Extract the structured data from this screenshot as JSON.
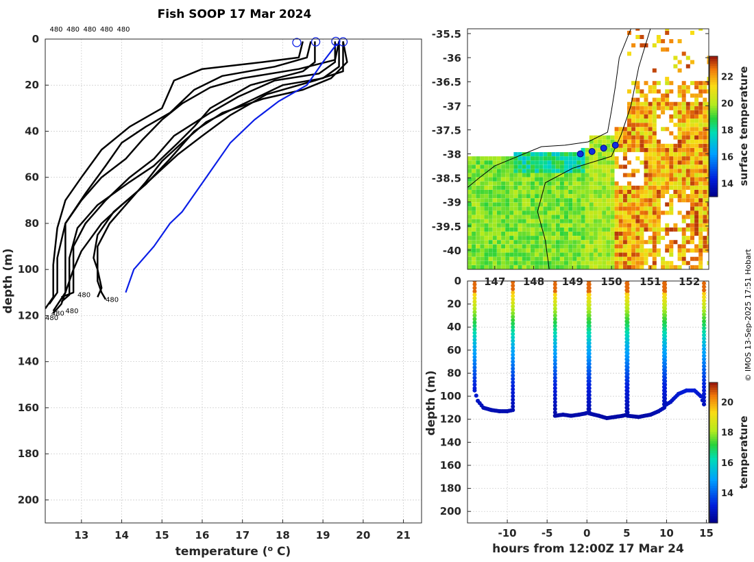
{
  "title": "Fish SOOP 17 Mar 2024",
  "credit": "© IMOS 13-Sep-2025 17:51 Hobart",
  "colors": {
    "profile": "#000000",
    "climatology": "#0a1ee6",
    "land": "#ffffff"
  },
  "chart_data": [
    {
      "type": "line",
      "name": "temperature-profiles",
      "xlabel": "temperature (° C)",
      "ylabel": "depth (m)",
      "xlim": [
        12.1,
        21.45
      ],
      "ylim": [
        210,
        0
      ],
      "xticks": [
        "13",
        "14",
        "15",
        "16",
        "17",
        "18",
        "19",
        "20",
        "21"
      ],
      "yticks": [
        "0",
        "20",
        "40",
        "60",
        "80",
        "100",
        "120",
        "140",
        "160",
        "180",
        "200"
      ],
      "top_labels": [
        "480",
        "480",
        "480",
        "480",
        "480"
      ],
      "bottom_labels": [
        {
          "text": "480",
          "x": 12.9,
          "y": 112
        },
        {
          "text": "480",
          "x": 13.6,
          "y": 114
        },
        {
          "text": "480",
          "x": 12.6,
          "y": 119
        },
        {
          "text": "480",
          "x": 12.25,
          "y": 120
        },
        {
          "text": "480",
          "x": 12.1,
          "y": 122
        }
      ],
      "surface_markers": [
        {
          "x": 18.35,
          "y": 1.5
        },
        {
          "x": 18.82,
          "y": 1.2
        },
        {
          "x": 19.32,
          "y": 1.0
        },
        {
          "x": 19.5,
          "y": 1.2
        }
      ],
      "series": [
        {
          "name": "profile-1",
          "points": [
            [
              18.5,
              1
            ],
            [
              18.4,
              8
            ],
            [
              17.5,
              10
            ],
            [
              16,
              13
            ],
            [
              15.3,
              18
            ],
            [
              15,
              30
            ],
            [
              14.2,
              38
            ],
            [
              13.5,
              48
            ],
            [
              13,
              60
            ],
            [
              12.6,
              70
            ],
            [
              12.4,
              82
            ],
            [
              12.3,
              98
            ],
            [
              12.3,
              112
            ],
            [
              12.1,
              117
            ]
          ]
        },
        {
          "name": "profile-2",
          "points": [
            [
              18.7,
              1
            ],
            [
              18.6,
              8
            ],
            [
              17.8,
              12
            ],
            [
              16.5,
              16
            ],
            [
              15.8,
              22
            ],
            [
              15.2,
              32
            ],
            [
              14.6,
              38
            ],
            [
              14,
              45
            ],
            [
              13.6,
              55
            ],
            [
              13.1,
              67
            ],
            [
              12.6,
              80
            ],
            [
              12.4,
              95
            ],
            [
              12.4,
              110
            ],
            [
              12.2,
              115
            ]
          ]
        },
        {
          "name": "profile-3",
          "points": [
            [
              18.8,
              1
            ],
            [
              18.8,
              10
            ],
            [
              18.5,
              14
            ],
            [
              17.2,
              20
            ],
            [
              16.2,
              30
            ],
            [
              15.8,
              38
            ],
            [
              15.4,
              45
            ],
            [
              14.8,
              55
            ],
            [
              14.2,
              62
            ],
            [
              13.4,
              72
            ],
            [
              12.9,
              82
            ],
            [
              12.7,
              95
            ],
            [
              12.7,
              111
            ],
            [
              12.5,
              114
            ]
          ]
        },
        {
          "name": "profile-4",
          "points": [
            [
              19.3,
              1
            ],
            [
              19.3,
              10
            ],
            [
              18.9,
              15
            ],
            [
              17.8,
              18
            ],
            [
              16.9,
              25
            ],
            [
              16.2,
              32
            ],
            [
              15.3,
              42
            ],
            [
              14.8,
              52
            ],
            [
              14.2,
              60
            ],
            [
              13.6,
              70
            ],
            [
              13.1,
              80
            ],
            [
              12.8,
              90
            ],
            [
              12.8,
              110
            ],
            [
              12.5,
              112
            ]
          ]
        },
        {
          "name": "profile-5",
          "points": [
            [
              19.4,
              1
            ],
            [
              19.4,
              12
            ],
            [
              19,
              17
            ],
            [
              18,
              20
            ],
            [
              16.8,
              30
            ],
            [
              16.1,
              36
            ],
            [
              15.5,
              45
            ],
            [
              15,
              53
            ],
            [
              14.6,
              62
            ],
            [
              14.1,
              72
            ],
            [
              13.7,
              80
            ],
            [
              13.4,
              90
            ],
            [
              13.4,
              105
            ],
            [
              13.5,
              110
            ],
            [
              13.6,
              113
            ]
          ]
        },
        {
          "name": "profile-6",
          "points": [
            [
              19.5,
              1
            ],
            [
              19.6,
              10
            ],
            [
              19.2,
              17
            ],
            [
              18.5,
              22
            ],
            [
              17.5,
              26
            ],
            [
              16.5,
              32
            ],
            [
              15.8,
              40
            ],
            [
              15.2,
              52
            ],
            [
              14.6,
              63
            ],
            [
              14,
              72
            ],
            [
              13.5,
              80
            ],
            [
              13,
              92
            ],
            [
              12.8,
              100
            ],
            [
              12.5,
              115
            ],
            [
              12.3,
              119
            ]
          ]
        },
        {
          "name": "profile-7",
          "points": [
            [
              19.5,
              1
            ],
            [
              19.5,
              14
            ],
            [
              18.8,
              18
            ],
            [
              17.6,
              24
            ],
            [
              16.7,
              33
            ],
            [
              16,
              42
            ],
            [
              15.4,
              50
            ],
            [
              14.9,
              58
            ],
            [
              14.4,
              66
            ],
            [
              13.8,
              75
            ],
            [
              13.4,
              85
            ],
            [
              13.3,
              95
            ],
            [
              13.4,
              100
            ],
            [
              13.5,
              108
            ],
            [
              13.4,
              112
            ]
          ]
        },
        {
          "name": "profile-8",
          "points": [
            [
              19.4,
              1
            ],
            [
              19.3,
              9
            ],
            [
              18.4,
              13
            ],
            [
              17,
              17
            ],
            [
              16.2,
              21
            ],
            [
              15.5,
              28
            ],
            [
              15,
              35
            ],
            [
              14.5,
              44
            ],
            [
              14.1,
              52
            ],
            [
              13.5,
              60
            ],
            [
              13,
              70
            ],
            [
              12.6,
              80
            ],
            [
              12.6,
              96
            ],
            [
              12.6,
              110
            ],
            [
              12.3,
              118
            ]
          ]
        }
      ],
      "climatology": {
        "name": "climatology",
        "points": [
          [
            19.35,
            2
          ],
          [
            19,
            10
          ],
          [
            18.6,
            20
          ],
          [
            17.9,
            27
          ],
          [
            17.3,
            35
          ],
          [
            16.7,
            45
          ],
          [
            16.1,
            60
          ],
          [
            15.5,
            75
          ],
          [
            15.2,
            80
          ],
          [
            14.8,
            90
          ],
          [
            14.3,
            100
          ],
          [
            14.1,
            110
          ]
        ]
      }
    },
    {
      "type": "heatmap",
      "name": "surface-temperature-map",
      "xlim": [
        146.3,
        152.5
      ],
      "ylim": [
        -40.4,
        -35.4
      ],
      "xticks": [
        "147",
        "148",
        "149",
        "150",
        "151",
        "152"
      ],
      "yticks": [
        "-35.5",
        "-36",
        "-36.5",
        "-37",
        "-37.5",
        "-38",
        "-38.5",
        "-39",
        "-39.5",
        "-40"
      ],
      "colorbar_label": "surface temperature",
      "colorbar_range": [
        13,
        23.5
      ],
      "colorbar_ticks": [
        "14",
        "16",
        "18",
        "20",
        "22"
      ],
      "track_points": [
        [
          149.2,
          -38.0
        ],
        [
          149.5,
          -37.95
        ],
        [
          149.8,
          -37.88
        ],
        [
          150.1,
          -37.82
        ]
      ]
    },
    {
      "type": "scatter",
      "name": "depth-time-section",
      "xlabel": "hours from 12:00Z 17 Mar 24",
      "ylabel": "depth (m)",
      "xlim": [
        -15,
        15.3
      ],
      "ylim": [
        210,
        0
      ],
      "xticks": [
        "-10",
        "-5",
        "0",
        "5",
        "10",
        "15"
      ],
      "yticks": [
        "0",
        "20",
        "40",
        "60",
        "80",
        "100",
        "120",
        "140",
        "160",
        "180",
        "200"
      ],
      "colorbar_label": "temperature",
      "colorbar_range": [
        12,
        21.3
      ],
      "colorbar_ticks": [
        "14",
        "16",
        "18",
        "20"
      ],
      "hauls": [
        {
          "start": -14.1,
          "end": -9.3,
          "bottom": [
            [
              -14.1,
              95
            ],
            [
              -13.7,
              104
            ],
            [
              -13,
              110
            ],
            [
              -12,
              112
            ],
            [
              -11,
              113
            ],
            [
              -10,
              113
            ],
            [
              -9.3,
              112
            ]
          ]
        },
        {
          "start": -4,
          "end": 0.2,
          "bottom": [
            [
              -4,
              117
            ],
            [
              -3,
              116
            ],
            [
              -2,
              117
            ],
            [
              -1,
              116
            ],
            [
              -0.2,
              115
            ],
            [
              0.2,
              114
            ]
          ]
        },
        {
          "start": 0.3,
          "end": 5.0,
          "bottom": [
            [
              0.3,
              115
            ],
            [
              1.5,
              117
            ],
            [
              2.5,
              119
            ],
            [
              3.5,
              118
            ],
            [
              4.5,
              117
            ],
            [
              5.0,
              116
            ]
          ]
        },
        {
          "start": 5.1,
          "end": 9.7,
          "bottom": [
            [
              5.1,
              117
            ],
            [
              6.5,
              118
            ],
            [
              8,
              116
            ],
            [
              9,
              113
            ],
            [
              9.7,
              110
            ]
          ]
        },
        {
          "start": 9.8,
          "end": 14.7,
          "bottom": [
            [
              9.8,
              108
            ],
            [
              10.5,
              105
            ],
            [
              11.5,
              98
            ],
            [
              12.5,
              95
            ],
            [
              13.5,
              95
            ],
            [
              14.3,
              100
            ],
            [
              14.7,
              107
            ]
          ]
        }
      ]
    }
  ]
}
